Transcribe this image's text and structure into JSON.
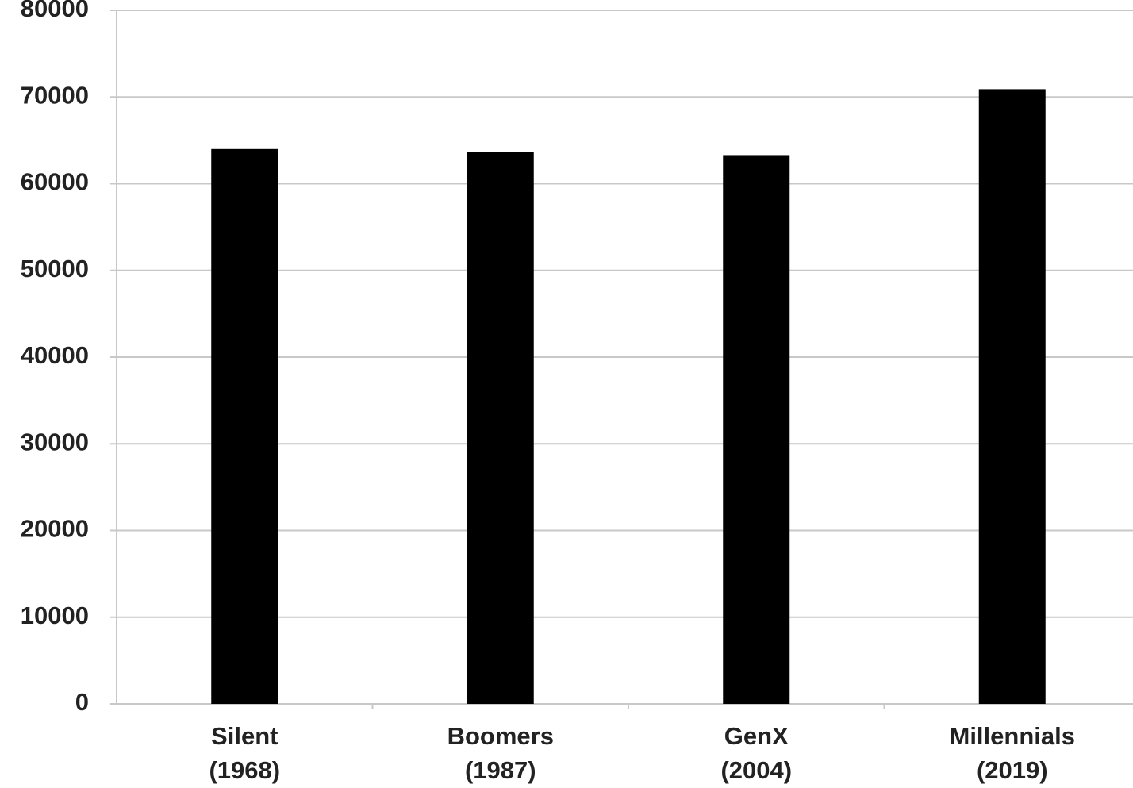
{
  "chart_data": {
    "type": "bar",
    "categories": [
      "Silent\n(1968)",
      "Boomers\n(1987)",
      "GenX\n(2004)",
      "Millennials\n(2019)"
    ],
    "values": [
      64000,
      63700,
      63300,
      70900
    ],
    "color": "#000000",
    "ylim": [
      0,
      80000
    ],
    "yticks": [
      0,
      10000,
      20000,
      30000,
      40000,
      50000,
      60000,
      70000,
      80000
    ],
    "grid": true
  }
}
